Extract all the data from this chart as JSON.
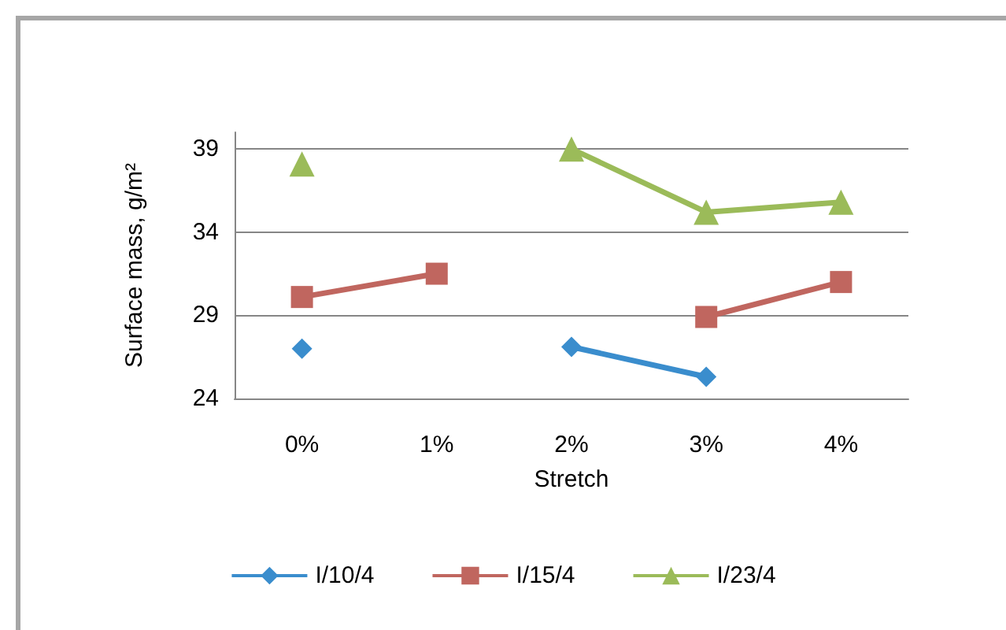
{
  "chart_data": {
    "type": "line",
    "xlabel": "Stretch",
    "ylabel": "Surface mass, g/m²",
    "categories": [
      "0%",
      "1%",
      "2%",
      "3%",
      "4%"
    ],
    "series": [
      {
        "name": "I/10/4",
        "color": "#3a8dcd",
        "marker": "diamond",
        "values": [
          27.0,
          null,
          27.1,
          25.3,
          null
        ]
      },
      {
        "name": "I/15/4",
        "color": "#c0665f",
        "marker": "square",
        "values": [
          30.1,
          31.5,
          null,
          28.9,
          31.0
        ]
      },
      {
        "name": "I/23/4",
        "color": "#9bbb59",
        "marker": "triangle",
        "values": [
          38.1,
          null,
          39.0,
          35.2,
          35.8
        ]
      }
    ],
    "ylim": [
      24,
      40
    ],
    "yticks": [
      24,
      29,
      34,
      39
    ],
    "grid": "y",
    "legend": "bottom",
    "line_style": "solid"
  }
}
